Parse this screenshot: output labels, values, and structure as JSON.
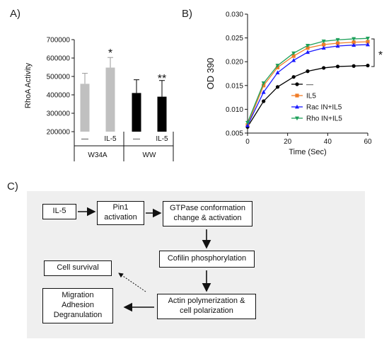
{
  "panel_a": {
    "letter": "A)",
    "group_labels": [
      "W34A",
      "WW"
    ],
    "condition_labels": [
      "—",
      "IL-5",
      "—",
      "IL-5"
    ],
    "stars": [
      "*",
      "**"
    ]
  },
  "panel_b": {
    "letter": "B)",
    "bracket_star": "*",
    "legend": [
      "—",
      "IL5",
      "Rac IN+IL5",
      "Rho IN+IL5"
    ]
  },
  "panel_c": {
    "letter": "C)",
    "boxes": {
      "il5": "IL-5",
      "pin1": "Pin1\nactivation",
      "gtpase": "GTPase conformation\nchange & activation",
      "cofilin": "Cofilin phosphorylation",
      "actin": "Actin polymerization &\ncell polarization",
      "survival": "Cell survival",
      "migration": "Migration\nAdhesion\nDegranulation"
    }
  },
  "chart_data": [
    {
      "type": "bar",
      "title": "",
      "xlabel": "",
      "ylabel": "RhoA Activity",
      "ylim": [
        200000,
        700000
      ],
      "yticks": [
        200000,
        300000,
        400000,
        500000,
        600000,
        700000
      ],
      "categories": [
        "W34A —",
        "W34A IL-5",
        "WW —",
        "WW IL-5"
      ],
      "values": [
        460000,
        548000,
        410000,
        390000
      ],
      "errors": [
        57000,
        55000,
        72000,
        88000
      ],
      "colors": [
        "#c0c0c0",
        "#c0c0c0",
        "#000000",
        "#000000"
      ],
      "annotations": [
        "",
        "*",
        "",
        "**"
      ]
    },
    {
      "type": "line",
      "title": "",
      "xlabel": "Time (Sec)",
      "ylabel": "OD 390",
      "xlim": [
        0,
        60
      ],
      "ylim": [
        0.005,
        0.03
      ],
      "xticks": [
        0,
        20,
        40,
        60
      ],
      "yticks": [
        0.005,
        0.01,
        0.015,
        0.02,
        0.025,
        0.03
      ],
      "x": [
        0,
        8,
        15,
        23,
        30,
        38,
        45,
        53,
        60
      ],
      "series": [
        {
          "name": "—",
          "color": "#000000",
          "marker": "circle",
          "values": [
            0.0063,
            0.0117,
            0.0147,
            0.0168,
            0.018,
            0.0187,
            0.019,
            0.0191,
            0.0192
          ]
        },
        {
          "name": "IL5",
          "color": "#f07d28",
          "marker": "square",
          "values": [
            0.0067,
            0.015,
            0.0188,
            0.0212,
            0.0229,
            0.0236,
            0.0239,
            0.0241,
            0.0242
          ]
        },
        {
          "name": "Rac IN+IL5",
          "color": "#1a1aff",
          "marker": "triangle-up",
          "values": [
            0.0066,
            0.0136,
            0.0177,
            0.0203,
            0.022,
            0.0229,
            0.0233,
            0.0235,
            0.0236
          ]
        },
        {
          "name": "Rho IN+IL5",
          "color": "#1ea05a",
          "marker": "triangle-down",
          "values": [
            0.0072,
            0.0155,
            0.0192,
            0.0218,
            0.0234,
            0.0243,
            0.0246,
            0.0248,
            0.0249
          ]
        }
      ]
    }
  ]
}
